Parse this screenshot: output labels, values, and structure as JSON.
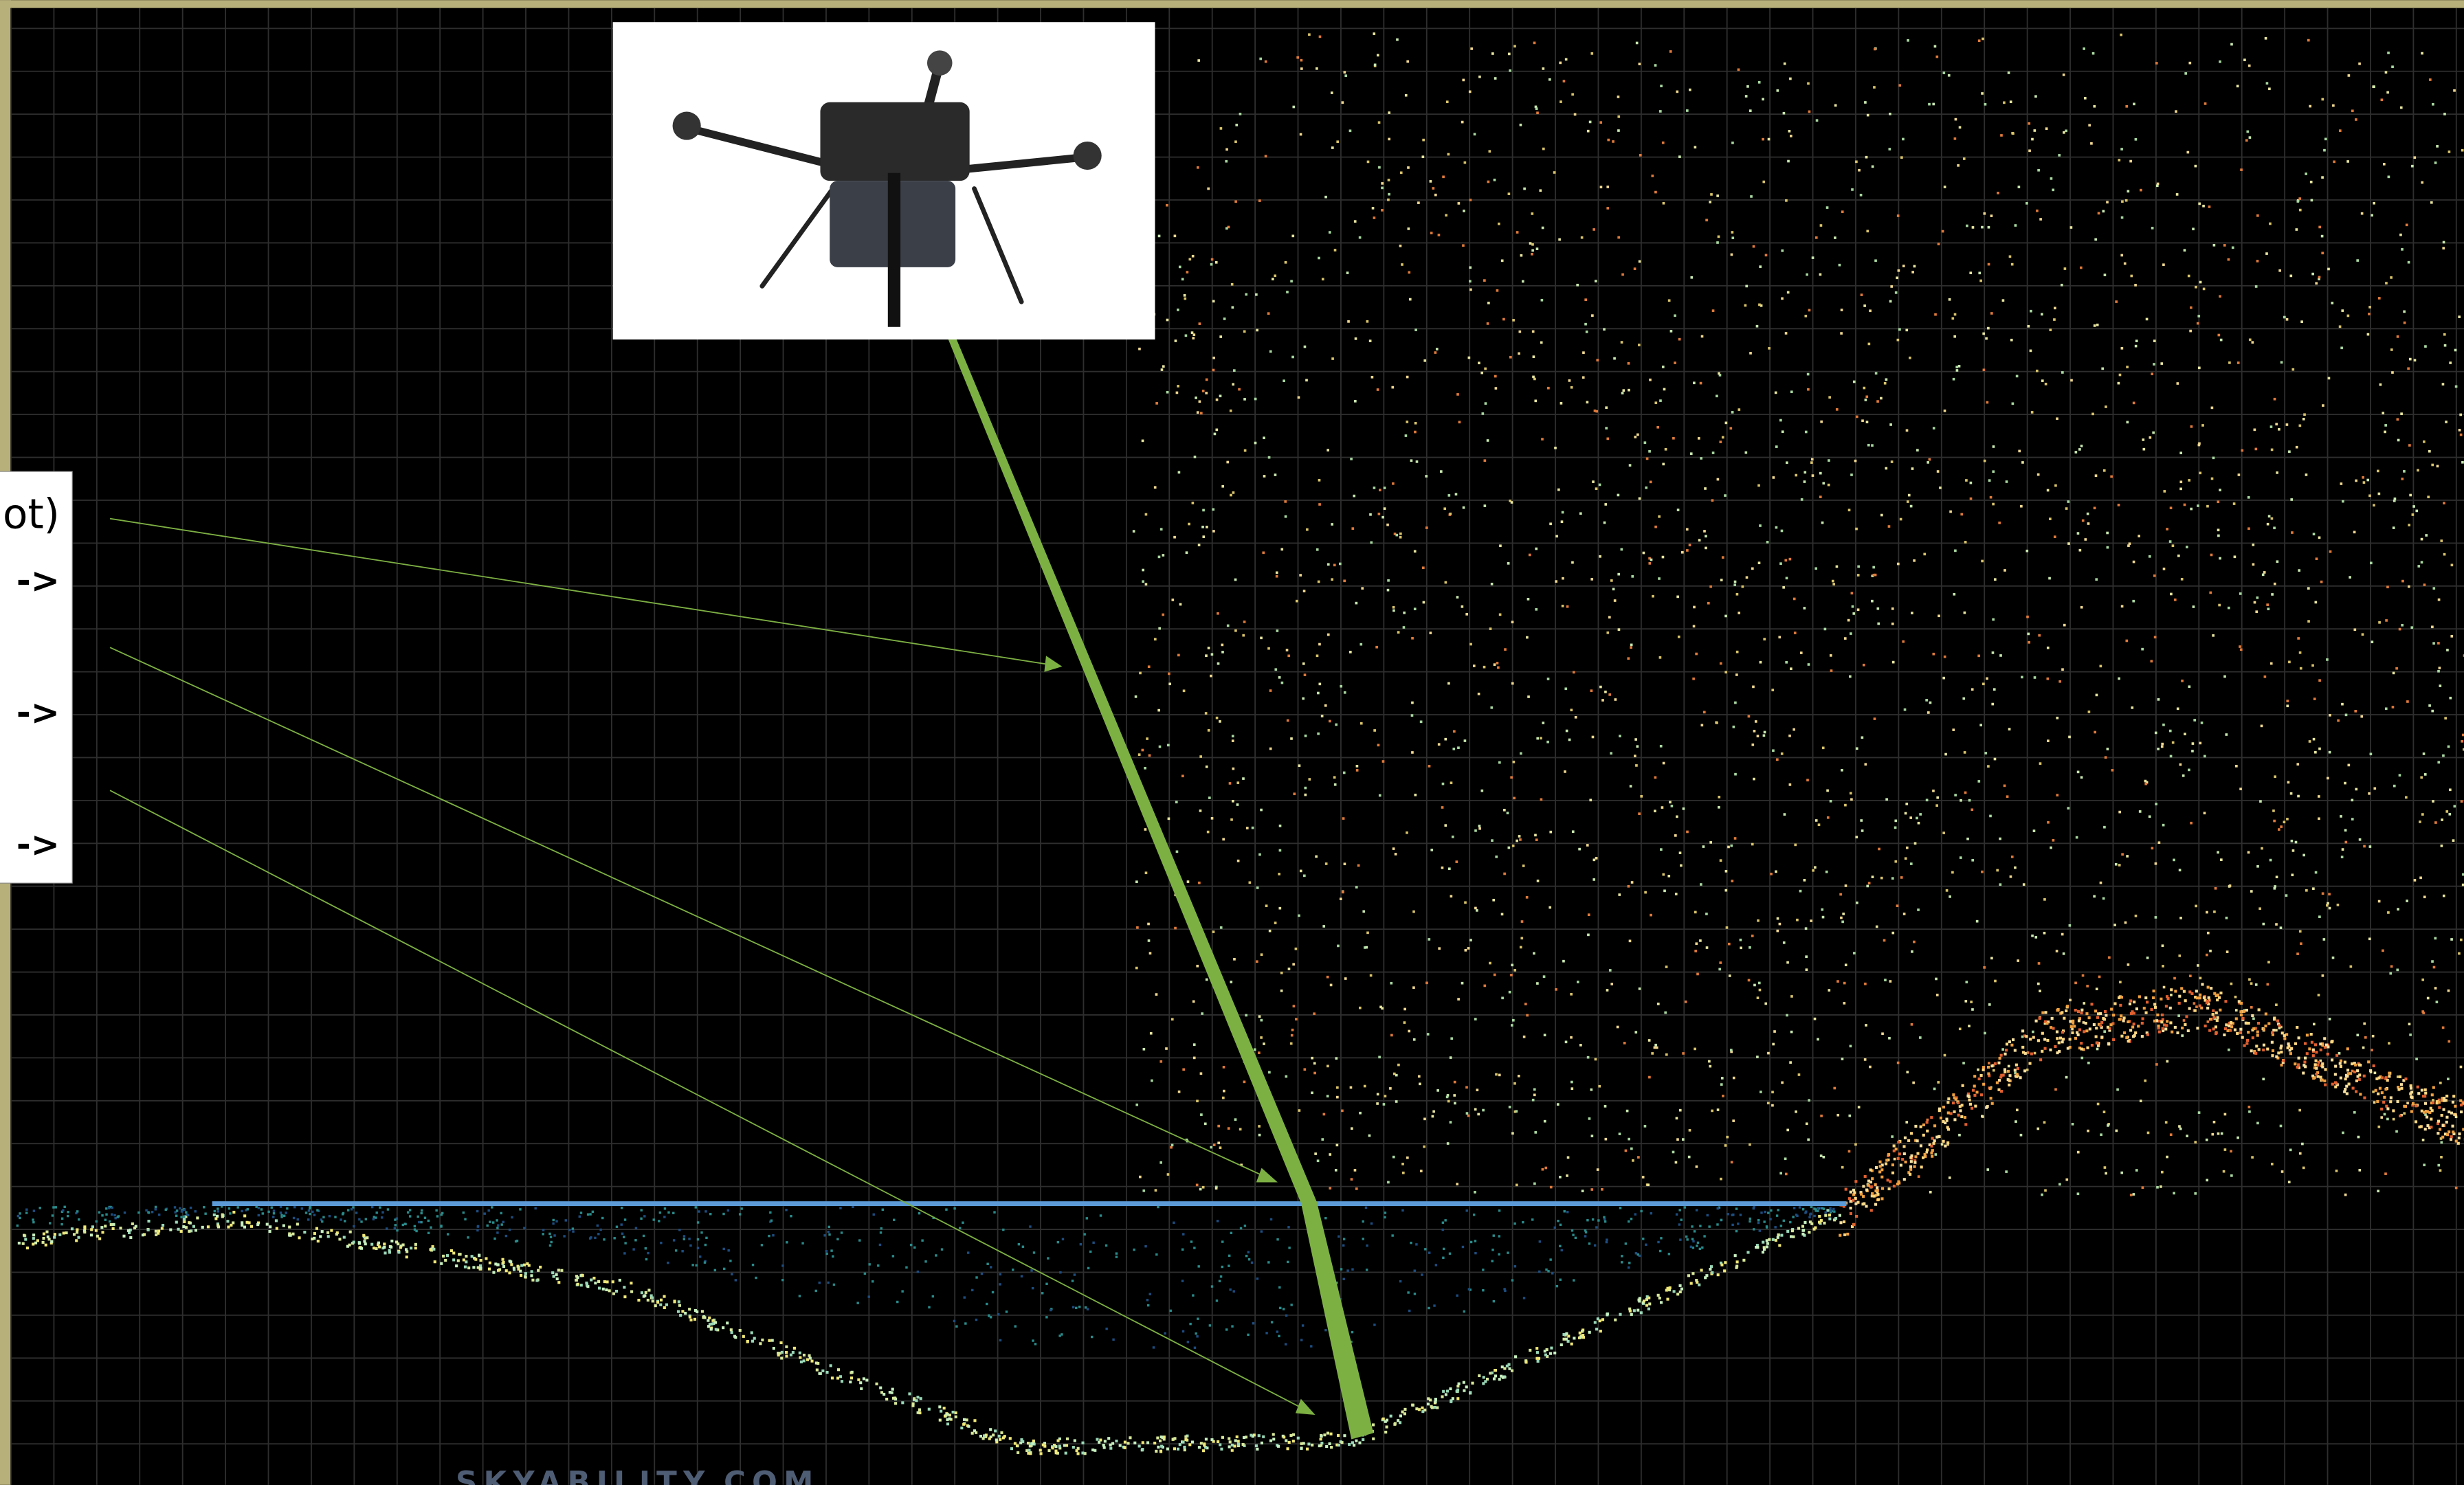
{
  "label_box": {
    "lines": [
      "ot)",
      "->",
      "->",
      "->"
    ]
  },
  "watermark": "SKYABILITY.COM"
}
